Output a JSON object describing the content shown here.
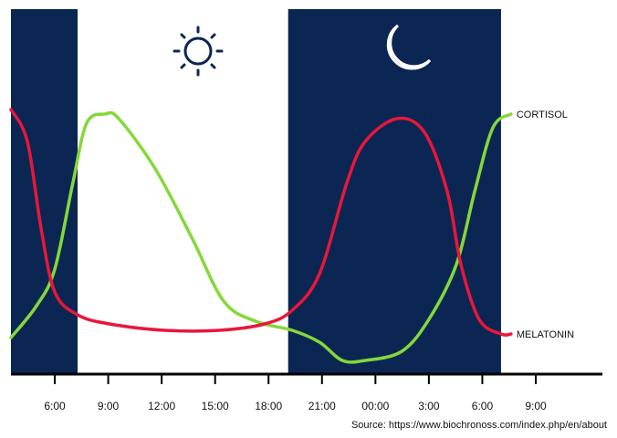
{
  "chart_data": {
    "type": "line",
    "xlim": [
      3.54,
      36.74
    ],
    "ylim": [
      0,
      100
    ],
    "xticks": [
      {
        "value": 6,
        "label": "6:00"
      },
      {
        "value": 9,
        "label": "9:00"
      },
      {
        "value": 12,
        "label": "12:00"
      },
      {
        "value": 15,
        "label": "15:00"
      },
      {
        "value": 18,
        "label": "18:00"
      },
      {
        "value": 21,
        "label": "21:00"
      },
      {
        "value": 24,
        "label": "00:00"
      },
      {
        "value": 27,
        "label": "3:00"
      },
      {
        "value": 30,
        "label": "6:00"
      },
      {
        "value": 33,
        "label": "9:00"
      }
    ],
    "night_bands": [
      {
        "from": 3.54,
        "to": 7.28
      },
      {
        "from": 19.1,
        "to": 31.05
      }
    ],
    "band_color": "#0b2653",
    "series": [
      {
        "name": "CORTISOL",
        "color": "#84d83a",
        "x": [
          3.54,
          4.98,
          6,
          7.02,
          7.79,
          8.82,
          9.59,
          11.64,
          13.68,
          15.48,
          17.27,
          19.33,
          20.86,
          22.14,
          23.43,
          25.48,
          27.0,
          28.54,
          29.57,
          30.59,
          31.61
        ],
        "values": [
          10,
          18.75,
          28.75,
          52.5,
          68.75,
          71.25,
          70,
          56.25,
          37.5,
          20,
          14.5,
          12,
          8.75,
          3.75,
          3.75,
          6.25,
          15,
          30,
          50,
          67.5,
          71.25
        ]
      },
      {
        "name": "MELATONIN",
        "color": "#e8173a",
        "x": [
          3.54,
          4.46,
          5.23,
          6,
          7.28,
          9.07,
          12.15,
          15.22,
          17.78,
          19.33,
          20.86,
          22.4,
          23.43,
          25.21,
          26.75,
          28.03,
          28.8,
          29.82,
          31.05,
          31.61
        ],
        "values": [
          72.5,
          63.75,
          40,
          22.5,
          16.25,
          13.75,
          12,
          12,
          13.75,
          17.5,
          27.5,
          52.5,
          63.75,
          70,
          66.25,
          50,
          30,
          15,
          11,
          11
        ]
      }
    ],
    "source": "Source: https://www.biochronoss.com/index.php/en/about"
  }
}
